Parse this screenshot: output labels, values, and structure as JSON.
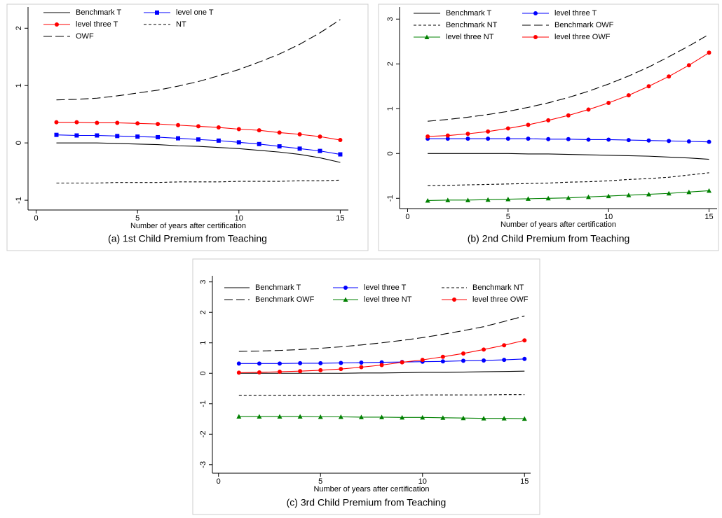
{
  "chart_data": [
    {
      "type": "line",
      "title": "(a) 1st Child Premium from Teaching",
      "xlabel": "Number of years after certification",
      "x": [
        1,
        2,
        3,
        4,
        5,
        6,
        7,
        8,
        9,
        10,
        11,
        12,
        13,
        14,
        15
      ],
      "xlim": [
        -0.4,
        15.4
      ],
      "xticks": [
        0,
        5,
        10,
        15
      ],
      "ylim": [
        -1.17,
        2.37
      ],
      "yticks": [
        -1,
        0,
        1,
        2
      ],
      "series": [
        {
          "name": "Benchmark T",
          "color": "#000000",
          "dash": "solid",
          "marker": "none",
          "values": [
            0,
            0,
            0,
            -0.01,
            -0.02,
            -0.03,
            -0.05,
            -0.06,
            -0.08,
            -0.1,
            -0.13,
            -0.16,
            -0.2,
            -0.26,
            -0.34
          ]
        },
        {
          "name": "level one T",
          "color": "#0000ff",
          "dash": "solid",
          "marker": "square",
          "values": [
            0.14,
            0.13,
            0.13,
            0.12,
            0.11,
            0.1,
            0.08,
            0.06,
            0.04,
            0.01,
            -0.02,
            -0.06,
            -0.1,
            -0.14,
            -0.2
          ]
        },
        {
          "name": "level three T",
          "color": "#ff0000",
          "dash": "solid",
          "marker": "circle",
          "values": [
            0.36,
            0.36,
            0.35,
            0.35,
            0.34,
            0.33,
            0.31,
            0.29,
            0.27,
            0.24,
            0.22,
            0.18,
            0.15,
            0.11,
            0.05
          ]
        },
        {
          "name": "NT",
          "color": "#000000",
          "dash": "short",
          "marker": "none",
          "values": [
            -0.7,
            -0.7,
            -0.7,
            -0.69,
            -0.69,
            -0.69,
            -0.68,
            -0.68,
            -0.68,
            -0.67,
            -0.67,
            -0.67,
            -0.66,
            -0.66,
            -0.65
          ]
        },
        {
          "name": "OWF",
          "color": "#000000",
          "dash": "long",
          "marker": "none",
          "values": [
            0.75,
            0.76,
            0.78,
            0.82,
            0.87,
            0.92,
            0.99,
            1.07,
            1.17,
            1.28,
            1.41,
            1.55,
            1.72,
            1.92,
            2.15
          ]
        }
      ]
    },
    {
      "type": "line",
      "title": "(b) 2nd Child Premium from Teaching",
      "xlabel": "Number of years after certification",
      "x": [
        1,
        2,
        3,
        4,
        5,
        6,
        7,
        8,
        9,
        10,
        11,
        12,
        13,
        14,
        15
      ],
      "xlim": [
        -0.4,
        15.4
      ],
      "xticks": [
        0,
        5,
        10,
        15
      ],
      "ylim": [
        -1.23,
        3.27
      ],
      "yticks": [
        -1,
        0,
        1,
        2,
        3
      ],
      "series": [
        {
          "name": "Benchmark T",
          "color": "#000000",
          "dash": "solid",
          "marker": "none",
          "values": [
            0,
            0,
            0,
            0,
            0,
            -0.01,
            -0.01,
            -0.02,
            -0.03,
            -0.04,
            -0.05,
            -0.06,
            -0.08,
            -0.1,
            -0.13
          ]
        },
        {
          "name": "level three T",
          "color": "#0000ff",
          "dash": "solid",
          "marker": "circle",
          "values": [
            0.33,
            0.33,
            0.33,
            0.33,
            0.33,
            0.33,
            0.32,
            0.32,
            0.31,
            0.31,
            0.3,
            0.29,
            0.28,
            0.27,
            0.26
          ]
        },
        {
          "name": "Benchmark NT",
          "color": "#000000",
          "dash": "short",
          "marker": "none",
          "values": [
            -0.72,
            -0.71,
            -0.7,
            -0.69,
            -0.68,
            -0.67,
            -0.66,
            -0.64,
            -0.63,
            -0.61,
            -0.58,
            -0.56,
            -0.53,
            -0.48,
            -0.43
          ]
        },
        {
          "name": "Benchmark OWF",
          "color": "#000000",
          "dash": "long",
          "marker": "none",
          "values": [
            0.72,
            0.76,
            0.81,
            0.87,
            0.94,
            1.03,
            1.13,
            1.25,
            1.39,
            1.55,
            1.73,
            1.93,
            2.16,
            2.4,
            2.66
          ]
        },
        {
          "name": "level three NT",
          "color": "#008000",
          "dash": "solid",
          "marker": "triangle",
          "values": [
            -1.05,
            -1.04,
            -1.04,
            -1.03,
            -1.02,
            -1.01,
            -1.0,
            -0.99,
            -0.97,
            -0.95,
            -0.93,
            -0.91,
            -0.89,
            -0.86,
            -0.83
          ]
        },
        {
          "name": "level three OWF",
          "color": "#ff0000",
          "dash": "solid",
          "marker": "circle",
          "values": [
            0.38,
            0.4,
            0.44,
            0.49,
            0.56,
            0.64,
            0.74,
            0.85,
            0.98,
            1.13,
            1.3,
            1.5,
            1.72,
            1.97,
            2.25
          ]
        }
      ]
    },
    {
      "type": "line",
      "title": "(c) 3rd Child Premium from Teaching",
      "xlabel": "Number of years after certification",
      "x": [
        1,
        2,
        3,
        4,
        5,
        6,
        7,
        8,
        9,
        10,
        11,
        12,
        13,
        14,
        15
      ],
      "xlim": [
        -0.3,
        15.3
      ],
      "xticks": [
        0,
        5,
        10,
        15
      ],
      "ylim": [
        -3.28,
        3.2
      ],
      "yticks": [
        -3,
        -2,
        -1,
        0,
        1,
        2,
        3
      ],
      "series": [
        {
          "name": "Benchmark T",
          "color": "#000000",
          "dash": "solid",
          "marker": "none",
          "values": [
            0,
            0,
            0,
            0,
            0,
            0,
            0.01,
            0.01,
            0.02,
            0.03,
            0.03,
            0.04,
            0.05,
            0.06,
            0.07
          ]
        },
        {
          "name": "level three T",
          "color": "#0000ff",
          "dash": "solid",
          "marker": "circle",
          "values": [
            0.32,
            0.32,
            0.32,
            0.33,
            0.33,
            0.34,
            0.35,
            0.36,
            0.37,
            0.38,
            0.39,
            0.41,
            0.42,
            0.44,
            0.47
          ]
        },
        {
          "name": "Benchmark NT",
          "color": "#000000",
          "dash": "short",
          "marker": "none",
          "values": [
            -0.72,
            -0.72,
            -0.72,
            -0.72,
            -0.72,
            -0.72,
            -0.72,
            -0.72,
            -0.72,
            -0.71,
            -0.71,
            -0.71,
            -0.71,
            -0.7,
            -0.7
          ]
        },
        {
          "name": "Benchmark OWF",
          "color": "#000000",
          "dash": "long",
          "marker": "none",
          "values": [
            0.72,
            0.73,
            0.75,
            0.78,
            0.82,
            0.87,
            0.93,
            1.0,
            1.08,
            1.17,
            1.28,
            1.4,
            1.53,
            1.7,
            1.88
          ]
        },
        {
          "name": "level three NT",
          "color": "#008000",
          "dash": "solid",
          "marker": "triangle",
          "values": [
            -1.42,
            -1.42,
            -1.42,
            -1.42,
            -1.43,
            -1.43,
            -1.44,
            -1.44,
            -1.45,
            -1.45,
            -1.46,
            -1.47,
            -1.48,
            -1.48,
            -1.49
          ]
        },
        {
          "name": "level three OWF",
          "color": "#ff0000",
          "dash": "solid",
          "marker": "circle",
          "values": [
            0.02,
            0.03,
            0.05,
            0.07,
            0.1,
            0.14,
            0.2,
            0.27,
            0.36,
            0.44,
            0.54,
            0.65,
            0.78,
            0.92,
            1.08
          ]
        }
      ]
    }
  ]
}
